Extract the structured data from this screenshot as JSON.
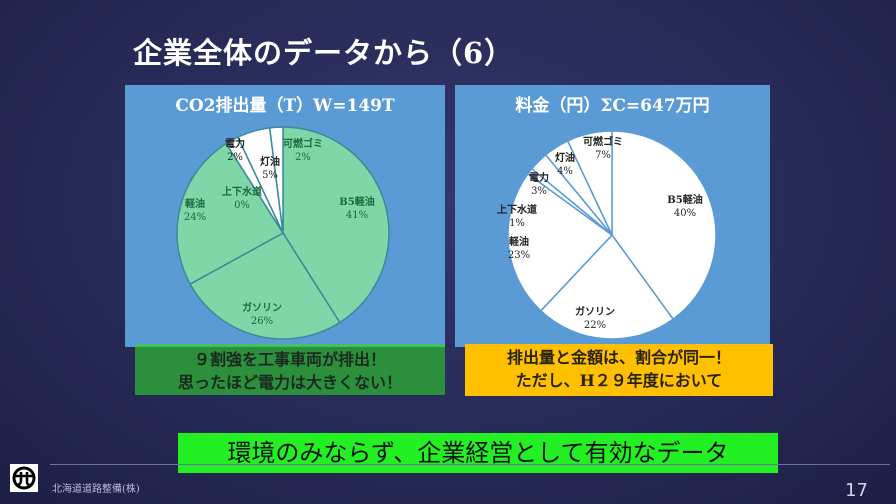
{
  "slide": {
    "title": "企業全体のデータから（6）",
    "note_left": [
      "９割強を工事車両が排出！",
      "思ったほど電力は大きくない！"
    ],
    "note_right": [
      "排出量と金額は、割合が同一！",
      "ただし、H２９年度において"
    ],
    "conclusion": "環境のみならず、企業経営として有効なデータ",
    "company": "北海道道路整備(株)",
    "page_number": "17"
  },
  "chart_data": [
    {
      "type": "pie",
      "title": "CO2排出量（T）W=149T",
      "categories": [
        "B5軽油",
        "ガソリン",
        "軽油",
        "上下水道",
        "電力",
        "灯油",
        "可燃ゴミ"
      ],
      "values": [
        41,
        26,
        24,
        0,
        2,
        5,
        2
      ],
      "labels": [
        "41%",
        "26%",
        "24%",
        "0%",
        "2%",
        "5%",
        "2%"
      ],
      "colors": [
        "#7fd6a6",
        "#7fd6a6",
        "#7fd6a6",
        "#ffffff",
        "#ffffff",
        "#ffffff",
        "#ffffff"
      ],
      "stroke": "#3a8a9a"
    },
    {
      "type": "pie",
      "title": "料金（円）ΣC=647万円",
      "categories": [
        "B5軽油",
        "ガソリン",
        "軽油",
        "上下水道",
        "電力",
        "灯油",
        "可燃ゴミ"
      ],
      "values": [
        40,
        22,
        23,
        1,
        3,
        4,
        7
      ],
      "labels": [
        "40%",
        "22%",
        "23%",
        "1%",
        "3%",
        "4%",
        "7%"
      ],
      "colors": [
        "#ffffff",
        "#ffffff",
        "#ffffff",
        "#ffffff",
        "#ffffff",
        "#ffffff",
        "#ffffff"
      ],
      "stroke": "#5b9bd5"
    }
  ]
}
